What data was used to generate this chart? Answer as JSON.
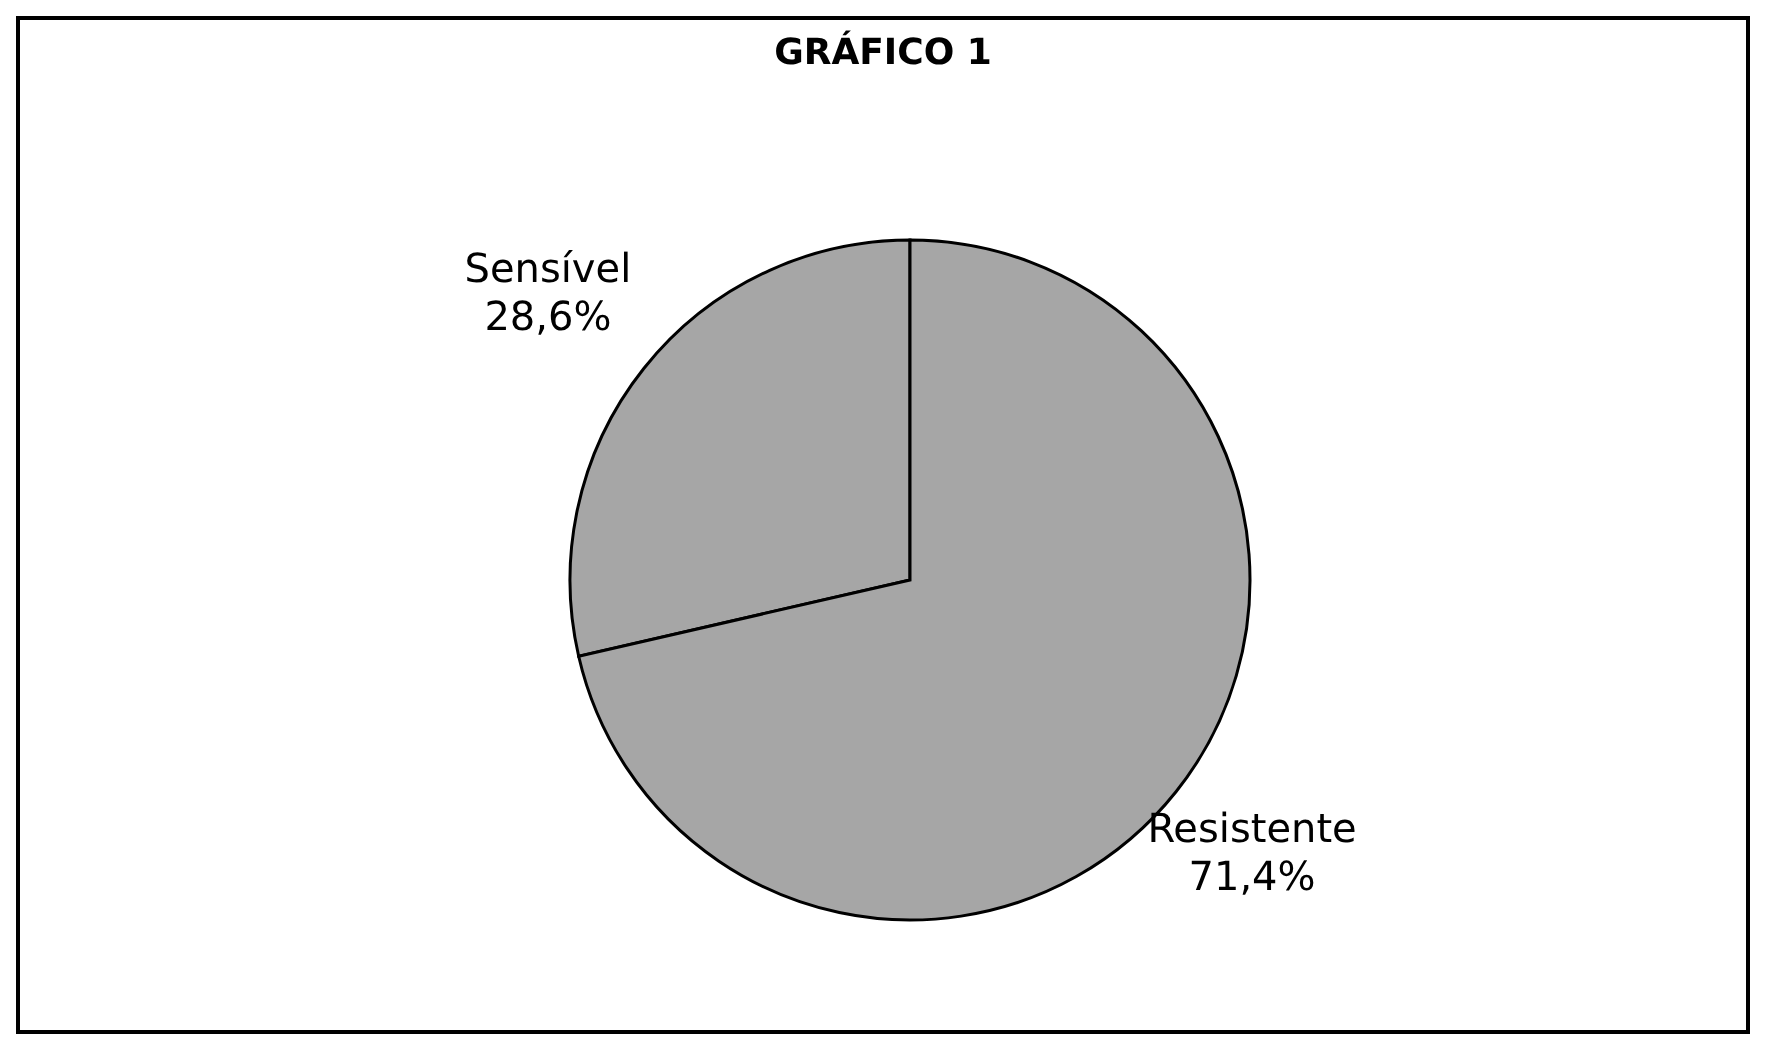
{
  "chart_data": {
    "type": "pie",
    "title": "GRÁFICO 1",
    "categories": [
      "Sensível",
      "Resistente"
    ],
    "values": [
      28.6,
      71.4
    ],
    "colors": [
      "#a6a6a6",
      "#a6a6a6"
    ],
    "value_labels": [
      "28,6%",
      "71,4%"
    ]
  }
}
